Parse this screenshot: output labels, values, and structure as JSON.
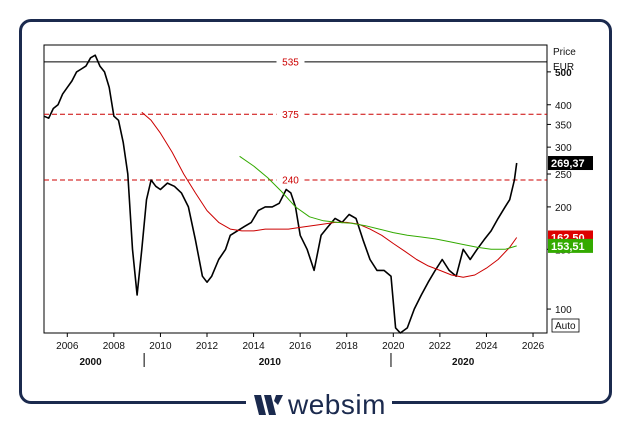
{
  "chart_data": {
    "type": "line",
    "ylabel": "Price",
    "unit": "EUR",
    "yscale": "log",
    "ylim": [
      85,
      600
    ],
    "xlim": [
      2005.0,
      2026.6
    ],
    "grid": false,
    "y_ticks": [
      {
        "v": 500,
        "label": "500",
        "bold": true
      },
      {
        "v": 400,
        "label": "400"
      },
      {
        "v": 350,
        "label": "350"
      },
      {
        "v": 300,
        "label": "300"
      },
      {
        "v": 250,
        "label": "250"
      },
      {
        "v": 200,
        "label": "200"
      },
      {
        "v": 150,
        "label": "150"
      },
      {
        "v": 100,
        "label": "100"
      }
    ],
    "x_ticks": [
      2006,
      2008,
      2010,
      2012,
      2014,
      2016,
      2018,
      2020,
      2022,
      2024,
      2026
    ],
    "x_tick_labels": [
      "2006",
      "2008",
      "2010",
      "2012",
      "2014",
      "2016",
      "2018",
      "2020",
      "2022",
      "2024",
      "2026"
    ],
    "x_major_ticks": [
      2009.3,
      2019.9
    ],
    "x_major_labels": [
      {
        "x": 2007.0,
        "label": "2000"
      },
      {
        "x": 2014.7,
        "label": "2010"
      },
      {
        "x": 2023.0,
        "label": "2020"
      }
    ],
    "hlines": [
      {
        "value": 535,
        "label": "535",
        "style": "solid",
        "color": "#000000"
      },
      {
        "value": 375,
        "label": "375",
        "style": "dashed",
        "color": "#cc0000"
      },
      {
        "value": 240,
        "label": "240",
        "style": "dashed",
        "color": "#cc0000"
      }
    ],
    "value_badges": [
      {
        "value": 269.37,
        "label": "269,37",
        "color": "#000000",
        "text_color": "#ffffff"
      },
      {
        "value": 162.5,
        "label": "162,50",
        "color": "#dd0000",
        "text_color": "#ffffff"
      },
      {
        "value": 153.51,
        "label": "153,51",
        "color": "#33aa00",
        "text_color": "#ffffff"
      }
    ],
    "auto_label": "Auto",
    "series": [
      {
        "kind": "price",
        "color": "#000000",
        "x": [
          2005.0,
          2005.2,
          2005.4,
          2005.6,
          2005.8,
          2006.0,
          2006.2,
          2006.4,
          2006.6,
          2006.8,
          2007.0,
          2007.2,
          2007.4,
          2007.6,
          2007.8,
          2008.0,
          2008.2,
          2008.4,
          2008.6,
          2008.8,
          2009.0,
          2009.2,
          2009.4,
          2009.6,
          2009.8,
          2010.0,
          2010.3,
          2010.6,
          2010.9,
          2011.2,
          2011.5,
          2011.8,
          2012.0,
          2012.2,
          2012.5,
          2012.8,
          2013.0,
          2013.3,
          2013.6,
          2013.9,
          2014.2,
          2014.5,
          2014.8,
          2015.1,
          2015.4,
          2015.6,
          2015.8,
          2016.0,
          2016.3,
          2016.6,
          2016.9,
          2017.2,
          2017.5,
          2017.8,
          2018.1,
          2018.4,
          2018.7,
          2019.0,
          2019.3,
          2019.6,
          2019.9,
          2020.1,
          2020.3,
          2020.6,
          2020.9,
          2021.2,
          2021.5,
          2021.8,
          2022.1,
          2022.4,
          2022.7,
          2023.0,
          2023.3,
          2023.6,
          2023.9,
          2024.2,
          2024.5,
          2024.8,
          2025.0,
          2025.2,
          2025.3
        ],
        "y": [
          370,
          365,
          390,
          400,
          430,
          450,
          470,
          500,
          510,
          520,
          550,
          560,
          520,
          500,
          450,
          370,
          360,
          310,
          250,
          150,
          110,
          150,
          210,
          240,
          230,
          225,
          235,
          230,
          220,
          200,
          160,
          125,
          120,
          125,
          140,
          150,
          165,
          170,
          175,
          180,
          195,
          200,
          200,
          205,
          225,
          220,
          200,
          165,
          150,
          130,
          165,
          175,
          185,
          180,
          190,
          185,
          160,
          140,
          130,
          130,
          125,
          88,
          85,
          88,
          100,
          110,
          120,
          130,
          140,
          130,
          125,
          150,
          140,
          150,
          160,
          170,
          185,
          200,
          210,
          240,
          269.37
        ]
      },
      {
        "kind": "moving_average",
        "color": "#cc0000",
        "x": [
          2009.2,
          2009.6,
          2010.0,
          2010.5,
          2011.0,
          2011.5,
          2012.0,
          2012.5,
          2013.0,
          2013.5,
          2014.0,
          2014.5,
          2015.0,
          2015.5,
          2016.0,
          2016.5,
          2017.0,
          2017.5,
          2018.0,
          2018.5,
          2019.0,
          2019.5,
          2020.0,
          2020.5,
          2021.0,
          2021.5,
          2022.0,
          2022.5,
          2023.0,
          2023.5,
          2024.0,
          2024.5,
          2025.0,
          2025.3
        ],
        "y": [
          380,
          360,
          330,
          290,
          250,
          220,
          195,
          180,
          172,
          170,
          170,
          172,
          172,
          172,
          174,
          176,
          178,
          180,
          180,
          178,
          172,
          165,
          156,
          148,
          140,
          134,
          130,
          126,
          124,
          126,
          132,
          140,
          152,
          162.5
        ]
      },
      {
        "kind": "moving_average",
        "color": "#33aa00",
        "x": [
          2013.4,
          2014.0,
          2014.6,
          2015.2,
          2015.8,
          2016.4,
          2017.0,
          2017.6,
          2018.2,
          2018.8,
          2019.4,
          2020.0,
          2020.6,
          2021.2,
          2021.8,
          2022.4,
          2023.0,
          2023.6,
          2024.2,
          2024.8,
          2025.3
        ],
        "y": [
          282,
          264,
          244,
          222,
          200,
          187,
          182,
          180,
          179,
          176,
          172,
          168,
          165,
          163,
          161,
          158,
          155,
          152,
          150,
          150,
          153.51
        ]
      }
    ]
  },
  "logo": {
    "text": "websim"
  }
}
